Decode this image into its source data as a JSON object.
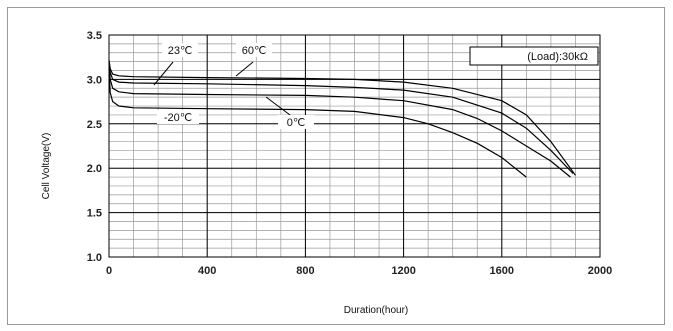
{
  "chart_data": {
    "type": "line",
    "title": "",
    "xlabel": "Duration(hour)",
    "ylabel": "Cell Voltage(V)",
    "xlim": [
      0,
      2000
    ],
    "ylim": [
      1.0,
      3.5
    ],
    "xticks": [
      0,
      400,
      800,
      1200,
      1600,
      2000
    ],
    "yticks": [
      1.0,
      1.5,
      2.0,
      2.5,
      3.0,
      3.5
    ],
    "xtick_labels": [
      "0",
      "400",
      "800",
      "1200",
      "1600",
      "2000"
    ],
    "ytick_labels": [
      "1.0",
      "1.5",
      "2.0",
      "2.5",
      "3.0",
      "3.5"
    ],
    "grid": true,
    "legend": {
      "label": "(Load):30kΩ",
      "placement": "top-right"
    },
    "series": [
      {
        "name": "60℃",
        "x": [
          0,
          5,
          15,
          40,
          100,
          400,
          800,
          1000,
          1200,
          1400,
          1600,
          1700,
          1800,
          1900
        ],
        "y": [
          3.22,
          3.12,
          3.06,
          3.04,
          3.03,
          3.02,
          3.01,
          3.0,
          2.97,
          2.9,
          2.76,
          2.6,
          2.3,
          1.92
        ]
      },
      {
        "name": "23℃",
        "x": [
          0,
          5,
          15,
          40,
          100,
          400,
          800,
          1000,
          1200,
          1400,
          1600,
          1700,
          1800,
          1890
        ],
        "y": [
          3.2,
          3.08,
          3.0,
          2.97,
          2.96,
          2.95,
          2.93,
          2.91,
          2.88,
          2.8,
          2.62,
          2.45,
          2.2,
          1.94
        ]
      },
      {
        "name": "0℃",
        "x": [
          0,
          5,
          15,
          40,
          100,
          400,
          800,
          1000,
          1200,
          1400,
          1500,
          1600,
          1700,
          1800,
          1880
        ],
        "y": [
          3.18,
          3.0,
          2.9,
          2.86,
          2.84,
          2.83,
          2.82,
          2.8,
          2.76,
          2.66,
          2.56,
          2.42,
          2.25,
          2.08,
          1.9
        ]
      },
      {
        "name": "-20℃",
        "x": [
          0,
          5,
          15,
          40,
          100,
          400,
          800,
          1000,
          1200,
          1300,
          1400,
          1500,
          1600,
          1700
        ],
        "y": [
          3.12,
          2.85,
          2.75,
          2.7,
          2.68,
          2.67,
          2.66,
          2.64,
          2.57,
          2.5,
          2.4,
          2.28,
          2.12,
          1.9
        ]
      }
    ],
    "annotations": [
      {
        "text": "23℃"
      },
      {
        "text": "60℃"
      },
      {
        "text": "-20℃"
      },
      {
        "text": "0℃"
      }
    ]
  }
}
